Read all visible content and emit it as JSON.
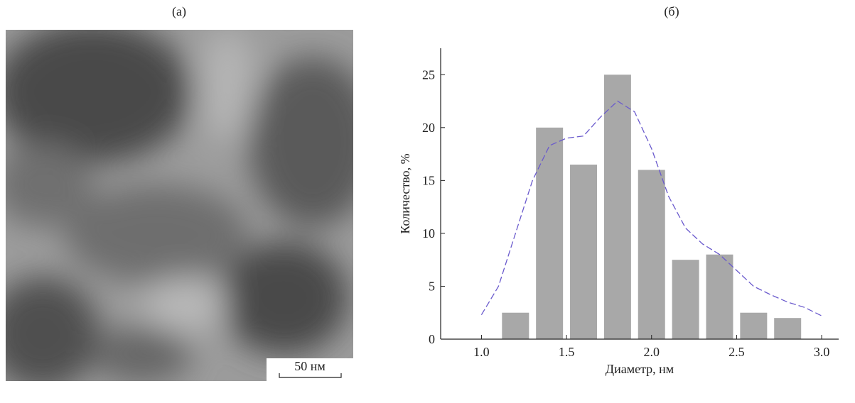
{
  "panel_a": {
    "label": "(а)",
    "scale_bar": "50 нм"
  },
  "chart_data": {
    "type": "bar",
    "label": "(б)",
    "x_label": "Диаметр, нм",
    "y_label": "Количество, %",
    "x": [
      1.2,
      1.4,
      1.6,
      1.8,
      2.0,
      2.2,
      2.4,
      2.6,
      2.8
    ],
    "values": [
      2.5,
      20,
      16.5,
      25,
      16,
      7.5,
      8,
      2.5,
      2
    ],
    "color": "#a8a8a8",
    "curve": {
      "x": [
        1.0,
        1.1,
        1.2,
        1.3,
        1.4,
        1.5,
        1.6,
        1.7,
        1.8,
        1.9,
        2.0,
        2.1,
        2.2,
        2.3,
        2.4,
        2.5,
        2.6,
        2.7,
        2.8,
        2.9,
        3.0
      ],
      "values": [
        2.3,
        5,
        10,
        15,
        18.3,
        19,
        19.2,
        21,
        22.5,
        21.5,
        18,
        13.5,
        10.5,
        9,
        8,
        6.5,
        5,
        4.2,
        3.5,
        3,
        2.2
      ],
      "color": "#6a5acd"
    },
    "xlim": [
      0.76,
      3.1
    ],
    "ylim": [
      0,
      27.5
    ],
    "xticks": [
      {
        "value": 1,
        "label": "1.0"
      },
      {
        "value": 1.5,
        "label": "1.5"
      },
      {
        "value": 2,
        "label": "2.0"
      },
      {
        "value": 2.5,
        "label": "2.5"
      },
      {
        "value": 3,
        "label": "3.0"
      }
    ],
    "yticks": [
      0,
      5,
      10,
      15,
      20,
      25
    ]
  }
}
